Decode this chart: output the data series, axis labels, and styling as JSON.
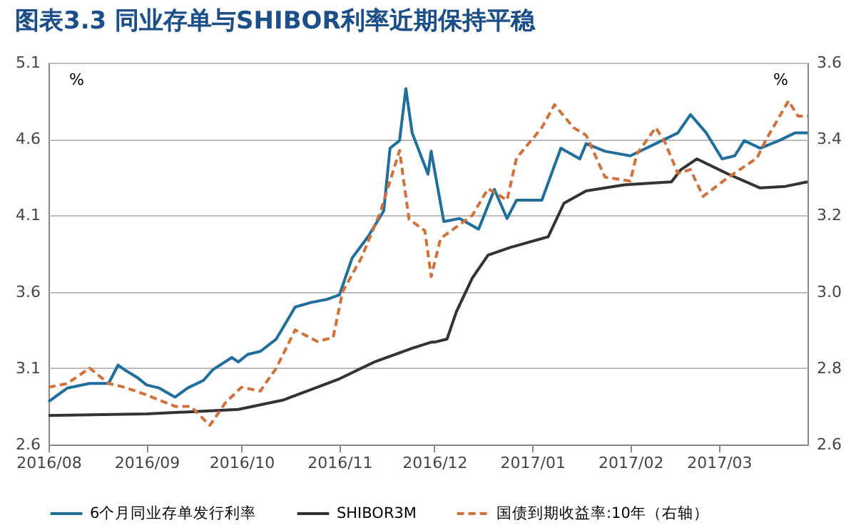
{
  "chart_data": {
    "type": "line",
    "title": "图表3.3 同业存单与SHIBOR利率近期保持平稳",
    "ylabel": "%",
    "y2label": "%",
    "xlim": [
      "2016-08-01",
      "2017-03-29"
    ],
    "xticks": [
      {
        "value": "2016-08-01",
        "label": "2016/08"
      },
      {
        "value": "2016-09-01",
        "label": "2016/09"
      },
      {
        "value": "2016-10-01",
        "label": "2016/10"
      },
      {
        "value": "2016-11-01",
        "label": "2016/11"
      },
      {
        "value": "2016-12-01",
        "label": "2016/12"
      },
      {
        "value": "2017-01-01",
        "label": "2017/01"
      },
      {
        "value": "2017-02-01",
        "label": "2017/02"
      },
      {
        "value": "2017-03-01",
        "label": "2017/03"
      }
    ],
    "ylim": [
      2.6,
      5.1
    ],
    "yticks": [
      2.6,
      3.1,
      3.6,
      4.1,
      4.6,
      5.1
    ],
    "y2lim": [
      2.6,
      3.6
    ],
    "y2ticks": [
      2.6,
      2.8,
      {
        "value": 3.0,
        "label": "3.0"
      },
      3.2,
      3.4,
      3.6
    ],
    "grid": "y",
    "legend": "bottom",
    "series": [
      {
        "name": "6个月同业存单发行利率",
        "color": "#1f6e9c",
        "line_style": "solid",
        "x": [
          "2016-08-01",
          "2016-08-07",
          "2016-08-14",
          "2016-08-20",
          "2016-08-23",
          "2016-08-25",
          "2016-08-29",
          "2016-09-01",
          "2016-09-05",
          "2016-09-10",
          "2016-09-14",
          "2016-09-19",
          "2016-09-22",
          "2016-09-28",
          "2016-09-30",
          "2016-10-03",
          "2016-10-07",
          "2016-10-12",
          "2016-10-18",
          "2016-10-23",
          "2016-10-28",
          "2016-11-01",
          "2016-11-05",
          "2016-11-10",
          "2016-11-15",
          "2016-11-17",
          "2016-11-20",
          "2016-11-22",
          "2016-11-24",
          "2016-11-29",
          "2016-11-30",
          "2016-12-04",
          "2016-12-09",
          "2016-12-15",
          "2016-12-20",
          "2016-12-24",
          "2016-12-27",
          "2017-01-04",
          "2017-01-10",
          "2017-01-16",
          "2017-01-18",
          "2017-01-24",
          "2017-02-01",
          "2017-02-09",
          "2017-02-16",
          "2017-02-20",
          "2017-02-25",
          "2017-03-02",
          "2017-03-06",
          "2017-03-09",
          "2017-03-14",
          "2017-03-20",
          "2017-03-25",
          "2017-03-29"
        ],
        "values": [
          2.88,
          2.97,
          3.0,
          3.0,
          3.12,
          3.09,
          3.04,
          2.99,
          2.97,
          2.91,
          2.97,
          3.02,
          3.09,
          3.17,
          3.14,
          3.19,
          3.21,
          3.29,
          3.5,
          3.53,
          3.55,
          3.58,
          3.82,
          3.96,
          4.13,
          4.54,
          4.59,
          4.93,
          4.64,
          4.37,
          4.52,
          4.06,
          4.08,
          4.01,
          4.27,
          4.08,
          4.2,
          4.2,
          4.54,
          4.47,
          4.57,
          4.52,
          4.49,
          4.57,
          4.64,
          4.76,
          4.64,
          4.47,
          4.49,
          4.59,
          4.54,
          4.59,
          4.64,
          4.64
        ]
      },
      {
        "name": "SHIBOR3M",
        "color": "#333333",
        "line_style": "solid",
        "x": [
          "2016-08-01",
          "2016-09-01",
          "2016-09-30",
          "2016-10-14",
          "2016-11-01",
          "2016-11-12",
          "2016-11-24",
          "2016-11-30",
          "2016-12-01",
          "2016-12-05",
          "2016-12-08",
          "2016-12-13",
          "2016-12-18",
          "2016-12-25",
          "2017-01-06",
          "2017-01-11",
          "2017-01-18",
          "2017-01-30",
          "2017-02-14",
          "2017-02-17",
          "2017-02-22",
          "2017-03-04",
          "2017-03-14",
          "2017-03-22",
          "2017-03-29"
        ],
        "values": [
          2.79,
          2.8,
          2.83,
          2.89,
          3.03,
          3.14,
          3.23,
          3.27,
          3.27,
          3.29,
          3.47,
          3.69,
          3.84,
          3.89,
          3.96,
          4.18,
          4.26,
          4.3,
          4.32,
          4.4,
          4.47,
          4.37,
          4.28,
          4.29,
          4.32
        ]
      },
      {
        "name": "国债到期收益率:10年（右轴）",
        "color": "#d2703a",
        "line_style": "dashed",
        "axis": "y2",
        "x": [
          "2016-08-01",
          "2016-08-07",
          "2016-08-14",
          "2016-08-20",
          "2016-08-25",
          "2016-09-01",
          "2016-09-10",
          "2016-09-15",
          "2016-09-21",
          "2016-09-26",
          "2016-10-01",
          "2016-10-07",
          "2016-10-12",
          "2016-10-18",
          "2016-10-25",
          "2016-10-30",
          "2016-11-02",
          "2016-11-08",
          "2016-11-14",
          "2016-11-20",
          "2016-11-23",
          "2016-11-28",
          "2016-11-30",
          "2016-12-03",
          "2016-12-13",
          "2016-12-18",
          "2016-12-24",
          "2016-12-27",
          "2017-01-04",
          "2017-01-08",
          "2017-01-14",
          "2017-01-18",
          "2017-01-24",
          "2017-02-01",
          "2017-02-03",
          "2017-02-09",
          "2017-02-12",
          "2017-02-16",
          "2017-02-20",
          "2017-02-24",
          "2017-03-04",
          "2017-03-13",
          "2017-03-16",
          "2017-03-23",
          "2017-03-26",
          "2017-03-29"
        ],
        "values": [
          2.75,
          2.76,
          2.8,
          2.76,
          2.75,
          2.73,
          2.7,
          2.7,
          2.65,
          2.71,
          2.75,
          2.74,
          2.8,
          2.9,
          2.87,
          2.88,
          3.0,
          3.09,
          3.21,
          3.37,
          3.19,
          3.16,
          3.04,
          3.14,
          3.2,
          3.27,
          3.24,
          3.35,
          3.43,
          3.49,
          3.43,
          3.41,
          3.3,
          3.29,
          3.36,
          3.43,
          3.39,
          3.31,
          3.32,
          3.25,
          3.3,
          3.35,
          3.4,
          3.5,
          3.46,
          3.46
        ]
      }
    ]
  }
}
